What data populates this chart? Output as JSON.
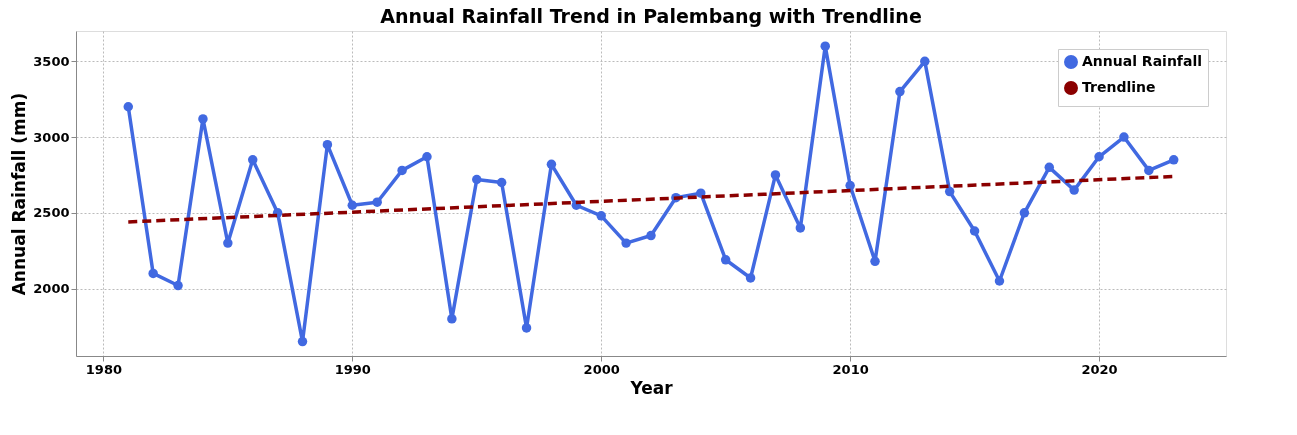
{
  "chart_data": {
    "type": "line",
    "title": "Annual Rainfall Trend in Palembang with Trendline",
    "xlabel": "Year",
    "ylabel": "Annual Rainfall (mm)",
    "x": [
      1981,
      1982,
      1983,
      1984,
      1985,
      1986,
      1987,
      1988,
      1989,
      1990,
      1991,
      1992,
      1993,
      1994,
      1995,
      1996,
      1997,
      1998,
      1999,
      2000,
      2001,
      2002,
      2003,
      2004,
      2005,
      2006,
      2007,
      2008,
      2009,
      2010,
      2011,
      2012,
      2013,
      2014,
      2015,
      2016,
      2017,
      2018,
      2019,
      2020,
      2021,
      2022,
      2023
    ],
    "series": [
      {
        "name": "Annual Rainfall",
        "color": "#4169e1",
        "marker": "circle",
        "line_style": "solid",
        "values": [
          3200,
          2100,
          2020,
          3120,
          2300,
          2850,
          2500,
          1650,
          2950,
          2550,
          2570,
          2780,
          2870,
          1800,
          2720,
          2700,
          1740,
          2820,
          2550,
          2480,
          2300,
          2350,
          2600,
          2630,
          2190,
          2070,
          2750,
          2400,
          3600,
          2680,
          2180,
          3300,
          3500,
          2640,
          2380,
          2050,
          2500,
          2800,
          2650,
          2870,
          3000,
          2780,
          2850
        ]
      },
      {
        "name": "Trendline",
        "type": "line",
        "color": "#8b0000",
        "marker": "none",
        "line_style": "dashed",
        "x": [
          1981,
          2023
        ],
        "values": [
          2440,
          2740
        ]
      }
    ],
    "xlim": [
      1978.9,
      2025.1
    ],
    "ylim": [
      1555,
      3700
    ],
    "xticks": [
      1980,
      1990,
      2000,
      2010,
      2020
    ],
    "yticks": [
      2000,
      2500,
      3000,
      3500
    ],
    "grid": true,
    "legend": "top right"
  }
}
